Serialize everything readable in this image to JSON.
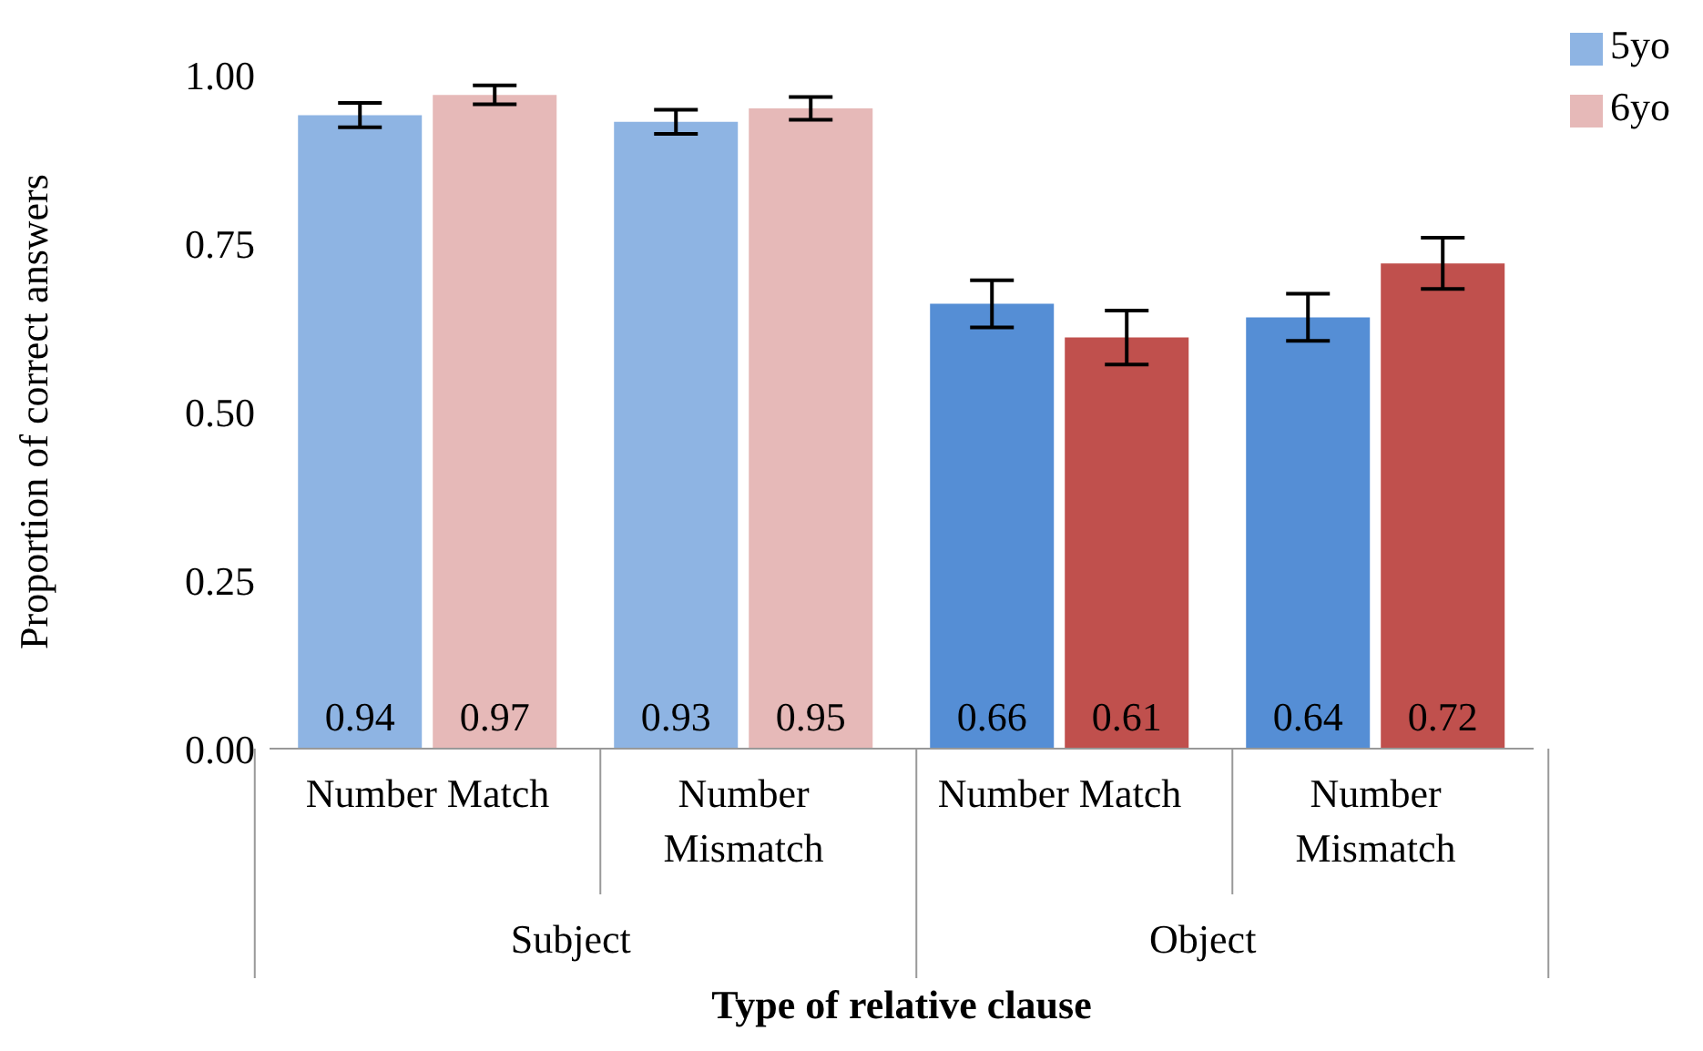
{
  "chart_data": {
    "type": "bar",
    "xlabel": "Type of relative clause",
    "ylabel": "Proportion of correct answers",
    "categories": [
      "Number Match",
      "Number Mismatch",
      "Number Match",
      "Number Mismatch"
    ],
    "annotations": [
      "Subject",
      "Object"
    ],
    "series": [
      {
        "name": "5yo",
        "color": "#8EB4E3",
        "colors": [
          "#8EB4E3",
          "#8EB4E3",
          "#558ED5",
          "#558ED5"
        ],
        "values": [
          0.94,
          0.93,
          0.66,
          0.64
        ],
        "errors": [
          0.018,
          0.018,
          0.035,
          0.035
        ]
      },
      {
        "name": "6yo",
        "color": "#E6B9B8",
        "colors": [
          "#E6B9B8",
          "#E6B9B8",
          "#C0504D",
          "#C0504D"
        ],
        "values": [
          0.97,
          0.95,
          0.61,
          0.72
        ],
        "errors": [
          0.014,
          0.017,
          0.04,
          0.038
        ]
      }
    ],
    "ylim": [
      0,
      1
    ],
    "yticks": [
      {
        "value": 0,
        "label": "0.00"
      },
      {
        "value": 0.25,
        "label": "0.25"
      },
      {
        "value": 0.5,
        "label": "0.50"
      },
      {
        "value": 0.75,
        "label": "0.75"
      },
      {
        "value": 1,
        "label": "1.00"
      }
    ],
    "data_labels": true,
    "legend": "top right",
    "grid": false
  }
}
